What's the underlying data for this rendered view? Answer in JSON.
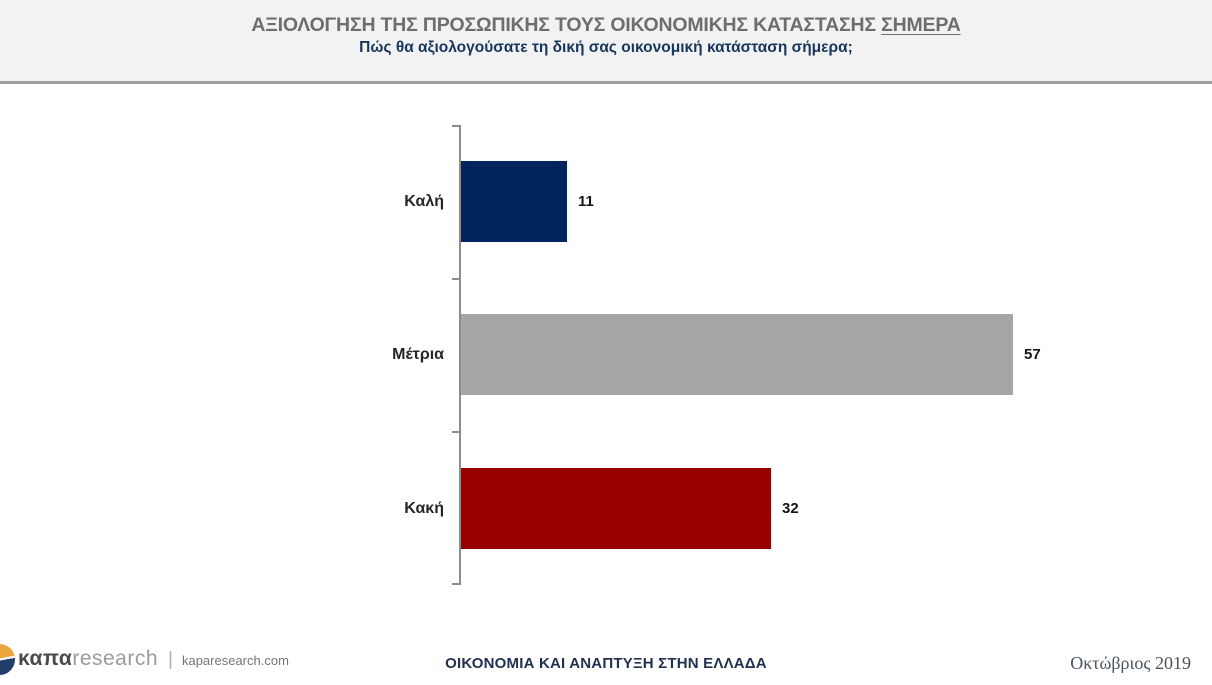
{
  "header": {
    "title_main": "ΑΞΙΟΛΟΓΗΣΗ ΤΗΣ ΠΡΟΣΩΠΙΚΗΣ ΤΟΥΣ ΟΙΚΟΝΟΜΙΚΗΣ ΚΑΤΑΣΤΑΣΗΣ ",
    "title_underlined": "ΣΗΜΕΡΑ",
    "subtitle": "Πώς θα αξιολογούσατε τη δική σας οικονομική κατάσταση σήμερα;"
  },
  "chart_data": {
    "type": "bar",
    "orientation": "horizontal",
    "title": "ΑΞΙΟΛΟΓΗΣΗ ΤΗΣ ΠΡΟΣΩΠΙΚΗΣ ΤΟΥΣ ΟΙΚΟΝΟΜΙΚΗΣ ΚΑΤΑΣΤΑΣΗΣ ΣΗΜΕΡΑ",
    "subtitle": "Πώς θα αξιολογούσατε τη δική σας οικονομική κατάσταση σήμερα;",
    "categories": [
      "Καλή",
      "Μέτρια",
      "Κακή"
    ],
    "values": [
      11,
      57,
      32
    ],
    "bar_colors": [
      "#03255e",
      "#a6a6a6",
      "#990000"
    ],
    "xlim": [
      0,
      75
    ],
    "grid": false,
    "legend": false,
    "value_labels_shown": true
  },
  "footer": {
    "logo_text_bold": "καπα",
    "logo_text_light": "research",
    "logo_separator": "|",
    "website": "kaparesearch.com",
    "center_text": "ΟΙΚΟΝΟΜΙΑ ΚΑΙ ΑΝΑΠΤΥΞΗ ΣΤΗΝ ΕΛΛΑΔΑ",
    "date": "Οκτώβριος 2019",
    "logo_colors": {
      "top": "#eda63c",
      "bottom": "#233d6b"
    }
  },
  "colors": {
    "header_background": "#f2f2f2",
    "header_title": "#6e6e6e",
    "subtitle_navy": "#17375e",
    "axis_gray": "#8c8c8c"
  }
}
